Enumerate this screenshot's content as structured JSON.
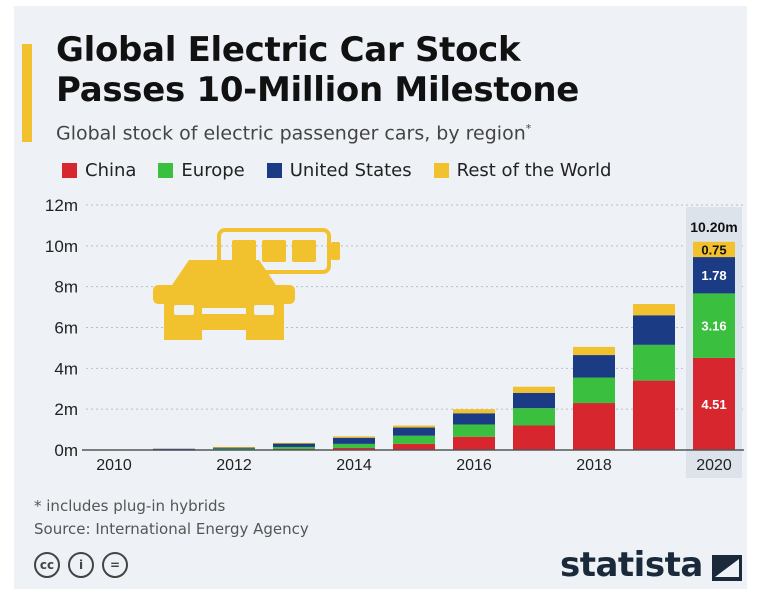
{
  "header": {
    "title_line1": "Global Electric Car Stock",
    "title_line2": "Passes 10-Million Milestone",
    "subtitle": "Global stock of electric passenger cars, by region",
    "subtitle_mark": "*"
  },
  "colors": {
    "china": "#d7262e",
    "europe": "#3bbf3f",
    "united_states": "#1c3b85",
    "rest_of_world": "#f2c12e"
  },
  "footer": {
    "footnote": "* includes plug-in hybrids",
    "source": "Source: International Energy Agency",
    "brand": "statista",
    "license_icons": [
      "cc-icon",
      "person-icon",
      "equals-icon"
    ],
    "license_glyphs": [
      "cc",
      "i",
      "="
    ]
  },
  "chart_data": {
    "type": "bar",
    "stacked": true,
    "categories": [
      "2010",
      "2011",
      "2012",
      "2013",
      "2014",
      "2015",
      "2016",
      "2017",
      "2018",
      "2019",
      "2020"
    ],
    "x_tick_labels": [
      "2010",
      "2012",
      "2014",
      "2016",
      "2018",
      "2020"
    ],
    "series": [
      {
        "name": "China",
        "values": [
          0.0,
          0.01,
          0.02,
          0.05,
          0.1,
          0.3,
          0.65,
          1.2,
          2.3,
          3.4,
          4.51
        ]
      },
      {
        "name": "Europe",
        "values": [
          0.0,
          0.03,
          0.05,
          0.1,
          0.2,
          0.4,
          0.6,
          0.85,
          1.25,
          1.75,
          3.16
        ]
      },
      {
        "name": "United States",
        "values": [
          0.0,
          0.02,
          0.07,
          0.17,
          0.3,
          0.4,
          0.55,
          0.75,
          1.1,
          1.45,
          1.78
        ]
      },
      {
        "name": "Rest of the World",
        "values": [
          0.0,
          0.0,
          0.01,
          0.03,
          0.07,
          0.1,
          0.2,
          0.3,
          0.4,
          0.55,
          0.75
        ]
      }
    ],
    "y_ticks": [
      "0m",
      "2m",
      "4m",
      "6m",
      "8m",
      "10m",
      "12m"
    ],
    "ylim": [
      0,
      12
    ],
    "unit": "m",
    "total_label": "10.20m",
    "grid": true,
    "legend_position": "top",
    "highlight_category": "2020"
  }
}
